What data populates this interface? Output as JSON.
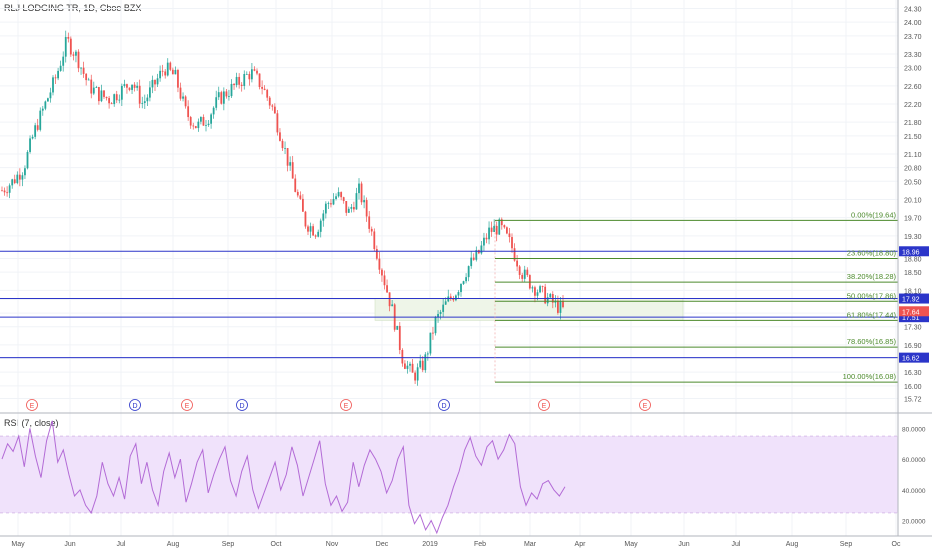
{
  "header": {
    "symbol_title": "RLJ LODGING TR, 1D, Cboe BZX",
    "rsi_title": "RSI (7, close)"
  },
  "colors": {
    "up": "#26a69a",
    "down": "#ef5350",
    "fib_line": "#4c8a2c",
    "fib_text": "#4c8a2c",
    "hline": "#2b35c9",
    "rsi_line": "#b36bd6",
    "rsi_band": "#f0e2fb",
    "earnings": "#ef5350",
    "dividend": "#2b35c9",
    "price_badge": "#ef5350",
    "grid": "#f0f3f7"
  },
  "chart_data": [
    {
      "type": "candlestick",
      "title": "RLJ LODGING TR, 1D, Cboe BZX",
      "x_ticks": [
        "May",
        "Jun",
        "Jul",
        "Aug",
        "Sep",
        "Oct",
        "Nov",
        "Dec",
        "2019",
        "Feb",
        "Mar",
        "Apr",
        "May",
        "Jun",
        "Jul",
        "Aug",
        "Sep",
        "Oc"
      ],
      "y_ticks": [
        15.72,
        16.0,
        16.3,
        16.6,
        16.9,
        17.3,
        17.6,
        17.9,
        18.1,
        18.5,
        18.8,
        19.3,
        19.7,
        20.1,
        20.5,
        20.8,
        21.1,
        21.5,
        21.8,
        22.2,
        22.6,
        23.0,
        23.3,
        23.7,
        24.0,
        24.3
      ],
      "y_tick_labels": [
        "15.72",
        "16.00",
        "16.30",
        "16.60",
        "16.90",
        "17.30",
        "17.60",
        "17.90",
        "18.10",
        "18.50",
        "18.80",
        "19.30",
        "19.70",
        "20.10",
        "20.50",
        "20.80",
        "21.10",
        "21.50",
        "21.80",
        "22.20",
        "22.60",
        "23.00",
        "23.30",
        "23.70",
        "24.00",
        "24.30"
      ],
      "ylim": [
        15.6,
        24.4
      ],
      "price_path": [
        [
          "May",
          20.3
        ],
        [
          "May",
          20.5
        ],
        [
          "May",
          20.8
        ],
        [
          "May",
          21.6
        ],
        [
          "May",
          22.2
        ],
        [
          "May",
          22.8
        ],
        [
          "Jun",
          23.6
        ],
        [
          "Jun",
          23.2
        ],
        [
          "Jun",
          22.6
        ],
        [
          "Jun",
          22.4
        ],
        [
          "Jun",
          22.3
        ],
        [
          "Jul",
          22.5
        ],
        [
          "Jul",
          22.7
        ],
        [
          "Jul",
          22.2
        ],
        [
          "Jul",
          22.6
        ],
        [
          "Jul",
          23.0
        ],
        [
          "Aug",
          22.8
        ],
        [
          "Aug",
          22.0
        ],
        [
          "Aug",
          21.7
        ],
        [
          "Aug",
          21.9
        ],
        [
          "Aug",
          22.3
        ],
        [
          "Sep",
          22.5
        ],
        [
          "Sep",
          22.7
        ],
        [
          "Sep",
          22.9
        ],
        [
          "Sep",
          22.6
        ],
        [
          "Oct",
          22.1
        ],
        [
          "Oct",
          21.3
        ],
        [
          "Oct",
          20.4
        ],
        [
          "Oct",
          19.6
        ],
        [
          "Nov",
          19.4
        ],
        [
          "Nov",
          20.0
        ],
        [
          "Nov",
          20.2
        ],
        [
          "Nov",
          19.8
        ],
        [
          "Dec",
          20.3
        ],
        [
          "Dec",
          19.5
        ],
        [
          "Dec",
          18.6
        ],
        [
          "Dec",
          17.7
        ],
        [
          "Dec",
          16.6
        ],
        [
          "Dec",
          16.2
        ],
        [
          "2019",
          16.5
        ],
        [
          "2019",
          17.4
        ],
        [
          "2019",
          17.8
        ],
        [
          "2019",
          18.1
        ],
        [
          "Feb",
          18.6
        ],
        [
          "Feb",
          18.9
        ],
        [
          "Feb",
          19.4
        ],
        [
          "Feb",
          19.5
        ],
        [
          "Mar",
          19.1
        ],
        [
          "Mar",
          18.5
        ],
        [
          "Mar",
          18.2
        ],
        [
          "Mar",
          18.0
        ],
        [
          "Mar",
          17.8
        ],
        [
          "Mar",
          17.64
        ]
      ],
      "last_price": "17.64",
      "horizontal_lines": [
        {
          "value": 18.96,
          "label": "18.96"
        },
        {
          "value": 17.92,
          "label": "17.92"
        },
        {
          "value": 17.51,
          "label": "17.51"
        },
        {
          "value": 16.62,
          "label": "16.62"
        }
      ],
      "fibonacci_levels": [
        {
          "label": "0.00%(19.64)",
          "value": 19.64
        },
        {
          "label": "23.60%(18.80)",
          "value": 18.8
        },
        {
          "label": "38.20%(18.28)",
          "value": 18.28
        },
        {
          "label": "50.00%(17.86)",
          "value": 17.86
        },
        {
          "label": "61.80%(17.44)",
          "value": 17.44
        },
        {
          "label": "78.60%(16.85)",
          "value": 16.85
        },
        {
          "label": "100.00%(16.08)",
          "value": 16.08
        }
      ],
      "events": [
        {
          "type": "E",
          "x": "May"
        },
        {
          "type": "D",
          "x": "Jul"
        },
        {
          "type": "E",
          "x": "Aug"
        },
        {
          "type": "D",
          "x": "Sep"
        },
        {
          "type": "E",
          "x": "Nov"
        },
        {
          "type": "D",
          "x": "2019"
        },
        {
          "type": "E",
          "x": "Mar"
        },
        {
          "type": "E",
          "x": "May"
        }
      ]
    },
    {
      "type": "line",
      "title": "RSI (7, close)",
      "y_ticks": [
        20,
        40,
        60,
        80
      ],
      "y_tick_labels": [
        "20.0000",
        "40.0000",
        "60.0000",
        "80.0000"
      ],
      "ylim": [
        10,
        90
      ],
      "band": [
        25,
        75
      ],
      "values": [
        60,
        70,
        65,
        75,
        55,
        80,
        62,
        48,
        72,
        85,
        58,
        66,
        50,
        36,
        40,
        30,
        25,
        36,
        58,
        44,
        36,
        48,
        34,
        62,
        70,
        44,
        58,
        40,
        30,
        52,
        64,
        48,
        60,
        32,
        44,
        58,
        66,
        38,
        50,
        60,
        68,
        46,
        36,
        52,
        62,
        40,
        28,
        38,
        48,
        58,
        40,
        50,
        68,
        56,
        36,
        48,
        60,
        72,
        44,
        30,
        36,
        26,
        32,
        58,
        42,
        56,
        66,
        60,
        52,
        38,
        46,
        60,
        68,
        30,
        18,
        24,
        14,
        20,
        12,
        22,
        30,
        42,
        52,
        66,
        74,
        62,
        56,
        68,
        72,
        60,
        66,
        76,
        70,
        42,
        30,
        38,
        34,
        44,
        46,
        40,
        36,
        42
      ]
    }
  ]
}
